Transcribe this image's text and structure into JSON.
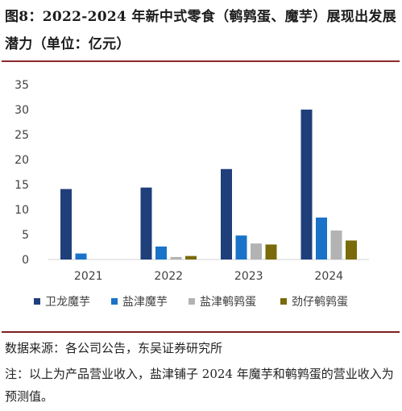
{
  "title": "图8：2022-2024 年新中式零食（鹌鹑蛋、魔芋）展现出发展潜力（单位：亿元）",
  "source": "数据来源：各公司公告，东吴证券研究所",
  "note": "注：以上为产品营业收入，盐津铺子 2024 年魔芋和鹌鹑蛋的营业收入为预测值。",
  "chart_data": {
    "type": "bar",
    "categories": [
      "2021",
      "2022",
      "2023",
      "2024"
    ],
    "series": [
      {
        "name": "卫龙魔芋",
        "color": "#1f3f7a",
        "values": [
          14.1,
          14.4,
          18.1,
          30.0
        ]
      },
      {
        "name": "盐津魔芋",
        "color": "#1a73c9",
        "values": [
          1.2,
          2.6,
          4.8,
          8.4
        ]
      },
      {
        "name": "盐津鹌鹑蛋",
        "color": "#b3b3b3",
        "values": [
          0,
          0.5,
          3.2,
          5.8
        ]
      },
      {
        "name": "劲仔鹌鹑蛋",
        "color": "#7a6a0a",
        "values": [
          0,
          0.7,
          3.0,
          3.8
        ]
      }
    ],
    "yticks": [
      "0",
      "5",
      "10",
      "15",
      "20",
      "25",
      "30",
      "35"
    ],
    "ylim": [
      0,
      35
    ],
    "grid": false,
    "legend": "bottom"
  }
}
